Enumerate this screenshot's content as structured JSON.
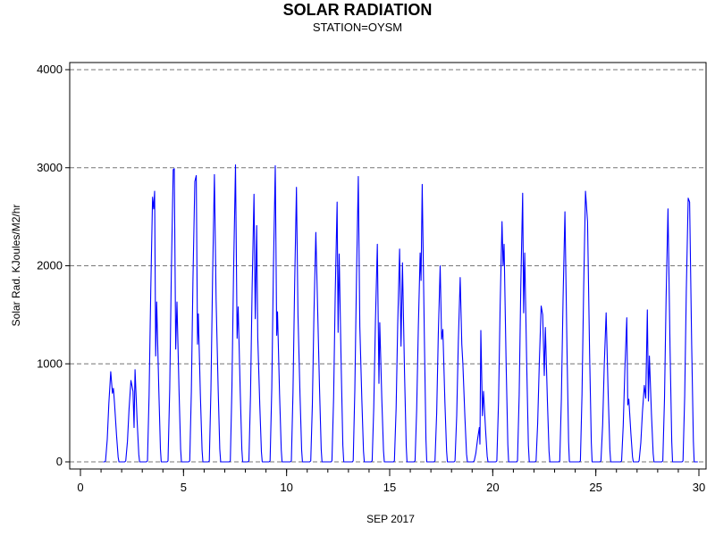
{
  "chart_data": {
    "type": "line",
    "title": "SOLAR RADIATION",
    "subtitle": "STATION=OYSM",
    "xlabel": "SEP 2017",
    "ylabel": "Solar Rad. KJoules/M2/hr",
    "xlim": [
      0,
      30
    ],
    "ylim": [
      0,
      4000
    ],
    "x_ticks": [
      0,
      5,
      10,
      15,
      20,
      25,
      30
    ],
    "y_ticks": [
      0,
      1000,
      2000,
      3000,
      4000
    ],
    "x_minor_tick_step": 1,
    "grid": "horizontal-dashed",
    "line_color": "#0000ff",
    "series": [
      {
        "daily_peaks": [
          {
            "day": 1,
            "shape": [
              [
                1.47,
                920
              ],
              [
                1.55,
                700
              ],
              [
                1.6,
                750
              ],
              [
                1.65,
                600
              ]
            ]
          },
          {
            "day": 2,
            "shape": [
              [
                2.45,
                830
              ],
              [
                2.55,
                720
              ],
              [
                2.6,
                350
              ],
              [
                2.65,
                940
              ]
            ]
          },
          {
            "day": 3,
            "shape": [
              [
                3.5,
                2700
              ],
              [
                3.55,
                2580
              ],
              [
                3.6,
                2760
              ],
              [
                3.65,
                1080
              ],
              [
                3.7,
                1630
              ]
            ]
          },
          {
            "day": 4,
            "shape": [
              [
                4.5,
                2980
              ],
              [
                4.55,
                2990
              ],
              [
                4.62,
                1150
              ],
              [
                4.68,
                1630
              ]
            ]
          },
          {
            "day": 5,
            "shape": [
              [
                5.55,
                2860
              ],
              [
                5.62,
                2920
              ],
              [
                5.68,
                1200
              ],
              [
                5.72,
                1510
              ]
            ]
          },
          {
            "day": 6,
            "shape": [
              [
                6.5,
                2930
              ],
              [
                6.58,
                1650
              ]
            ]
          },
          {
            "day": 7,
            "shape": [
              [
                7.52,
                3030
              ],
              [
                7.6,
                1260
              ],
              [
                7.65,
                1580
              ]
            ]
          },
          {
            "day": 8,
            "shape": [
              [
                8.42,
                2730
              ],
              [
                8.48,
                1460
              ],
              [
                8.55,
                2410
              ],
              [
                8.6,
                1270
              ]
            ]
          },
          {
            "day": 9,
            "shape": [
              [
                9.45,
                3020
              ],
              [
                9.52,
                1290
              ],
              [
                9.56,
                1530
              ]
            ]
          },
          {
            "day": 10,
            "shape": [
              [
                10.48,
                2800
              ],
              [
                10.55,
                1500
              ]
            ]
          },
          {
            "day": 11,
            "shape": [
              [
                11.42,
                2340
              ],
              [
                11.5,
                1600
              ]
            ]
          },
          {
            "day": 12,
            "shape": [
              [
                12.45,
                2650
              ],
              [
                12.5,
                1320
              ],
              [
                12.55,
                2120
              ]
            ]
          },
          {
            "day": 13,
            "shape": [
              [
                13.48,
                2910
              ],
              [
                13.55,
                1380
              ]
            ]
          },
          {
            "day": 14,
            "shape": [
              [
                14.4,
                2220
              ],
              [
                14.48,
                800
              ],
              [
                14.52,
                1420
              ]
            ]
          },
          {
            "day": 15,
            "shape": [
              [
                15.48,
                2170
              ],
              [
                15.55,
                1180
              ],
              [
                15.62,
                2030
              ]
            ]
          },
          {
            "day": 16,
            "shape": [
              [
                16.48,
                2130
              ],
              [
                16.52,
                1850
              ],
              [
                16.58,
                2830
              ]
            ]
          },
          {
            "day": 17,
            "shape": [
              [
                17.45,
                2000
              ],
              [
                17.52,
                1250
              ],
              [
                17.58,
                1350
              ]
            ]
          },
          {
            "day": 18,
            "shape": [
              [
                18.42,
                1880
              ],
              [
                18.5,
                1200
              ],
              [
                18.55,
                1000
              ]
            ]
          },
          {
            "day": 19,
            "shape": [
              [
                19.35,
                350
              ],
              [
                19.38,
                180
              ],
              [
                19.42,
                1340
              ],
              [
                19.5,
                470
              ],
              [
                19.55,
                720
              ]
            ]
          },
          {
            "day": 20,
            "shape": [
              [
                20.45,
                2450
              ],
              [
                20.5,
                2000
              ],
              [
                20.55,
                2220
              ]
            ]
          },
          {
            "day": 21,
            "shape": [
              [
                21.45,
                2740
              ],
              [
                21.5,
                1520
              ],
              [
                21.55,
                2130
              ]
            ]
          },
          {
            "day": 22,
            "shape": [
              [
                22.35,
                1590
              ],
              [
                22.42,
                1500
              ],
              [
                22.5,
                880
              ],
              [
                22.55,
                1370
              ]
            ]
          },
          {
            "day": 23,
            "shape": [
              [
                23.5,
                2550
              ]
            ]
          },
          {
            "day": 24,
            "shape": [
              [
                24.5,
                2760
              ],
              [
                24.6,
                2450
              ]
            ]
          },
          {
            "day": 25,
            "shape": [
              [
                25.5,
                1520
              ]
            ]
          },
          {
            "day": 26,
            "shape": [
              [
                26.5,
                1470
              ],
              [
                26.55,
                580
              ],
              [
                26.6,
                640
              ]
            ]
          },
          {
            "day": 27,
            "shape": [
              [
                27.35,
                780
              ],
              [
                27.42,
                650
              ],
              [
                27.5,
                1550
              ],
              [
                27.55,
                620
              ],
              [
                27.6,
                1080
              ]
            ]
          },
          {
            "day": 28,
            "shape": [
              [
                28.5,
                2580
              ]
            ]
          },
          {
            "day": 29,
            "shape": [
              [
                29.48,
                2690
              ],
              [
                29.55,
                2650
              ]
            ]
          }
        ]
      }
    ]
  }
}
